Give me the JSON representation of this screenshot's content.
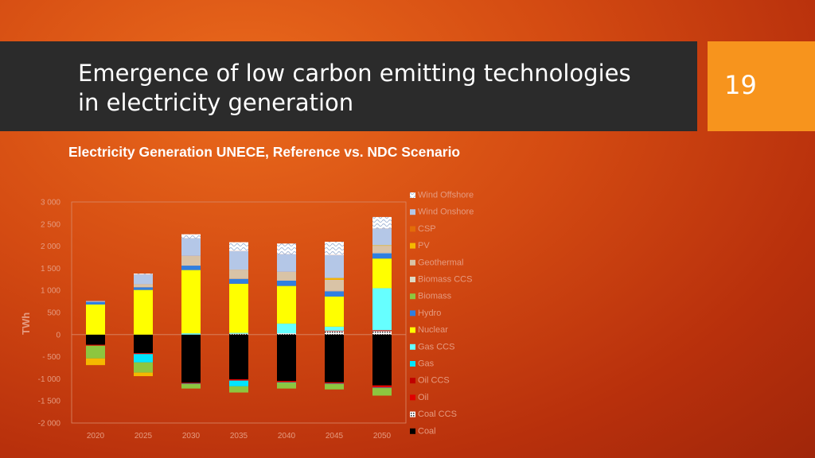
{
  "header": {
    "title_line1": "Emergence of low carbon emitting technologies",
    "title_line2": "in electricity generation",
    "page_number": "19"
  },
  "chart_data": {
    "type": "bar",
    "stacked": true,
    "title": "Electricity Generation UNECE, Reference  vs. NDC Scenario",
    "ylabel": "TWh",
    "xlabel": "",
    "ylim": [
      -2000,
      3000
    ],
    "yticks": [
      "3 000",
      "2 500",
      "2 000",
      "1 500",
      "1 000",
      "500",
      "0",
      "- 500",
      "-1 000",
      "-1 500",
      "-2 000"
    ],
    "ytick_values": [
      3000,
      2500,
      2000,
      1500,
      1000,
      500,
      0,
      -500,
      -1000,
      -1500,
      -2000
    ],
    "categories": [
      "2020",
      "2025",
      "2030",
      "2035",
      "2040",
      "2045",
      "2050"
    ],
    "grid": false,
    "legend_position": "right",
    "series": [
      {
        "name": "Coal",
        "color": "#000000",
        "values": [
          -230,
          -420,
          -1090,
          -1010,
          -1050,
          -1080,
          -1150
        ]
      },
      {
        "name": "Coal CCS",
        "color": "#2b2b2b",
        "values": [
          0,
          0,
          0,
          20,
          30,
          80,
          80
        ]
      },
      {
        "name": "Oil",
        "color": "#e00000",
        "values": [
          -20,
          -20,
          -20,
          -30,
          -30,
          -30,
          -50
        ]
      },
      {
        "name": "Oil CCS",
        "color": "#c00000",
        "values": [
          0,
          0,
          0,
          0,
          0,
          10,
          20
        ]
      },
      {
        "name": "Gas",
        "color": "#00e5ff",
        "values": [
          0,
          -190,
          -10,
          -130,
          -10,
          -10,
          -10
        ]
      },
      {
        "name": "Gas CCS",
        "color": "#66ffff",
        "values": [
          0,
          0,
          30,
          20,
          220,
          90,
          950
        ]
      },
      {
        "name": "Nuclear",
        "color": "#ffff00",
        "values": [
          680,
          1010,
          1430,
          1110,
          850,
          680,
          670
        ]
      },
      {
        "name": "Hydro",
        "color": "#2f7fe0",
        "values": [
          60,
          60,
          100,
          110,
          120,
          120,
          120
        ]
      },
      {
        "name": "Biomass",
        "color": "#8dc63f",
        "values": [
          -290,
          -230,
          -100,
          -140,
          -130,
          -120,
          -170
        ]
      },
      {
        "name": "Biomass CCS",
        "color": "#ddd9c4",
        "values": [
          0,
          0,
          0,
          0,
          0,
          10,
          10
        ]
      },
      {
        "name": "Geothermal",
        "color": "#d9c3a6",
        "values": [
          0,
          70,
          220,
          210,
          200,
          250,
          160
        ]
      },
      {
        "name": "PV",
        "color": "#f5b800",
        "values": [
          -150,
          -80,
          0,
          0,
          0,
          40,
          10
        ]
      },
      {
        "name": "CSP",
        "color": "#e36c09",
        "values": [
          0,
          0,
          0,
          0,
          0,
          0,
          0
        ]
      },
      {
        "name": "Wind Onshore",
        "color": "#b4c7e7",
        "values": [
          20,
          220,
          400,
          420,
          400,
          520,
          380
        ]
      },
      {
        "name": "Wind Offshore",
        "color": "#ffffff",
        "values": [
          0,
          20,
          90,
          200,
          240,
          300,
          260
        ]
      }
    ]
  }
}
